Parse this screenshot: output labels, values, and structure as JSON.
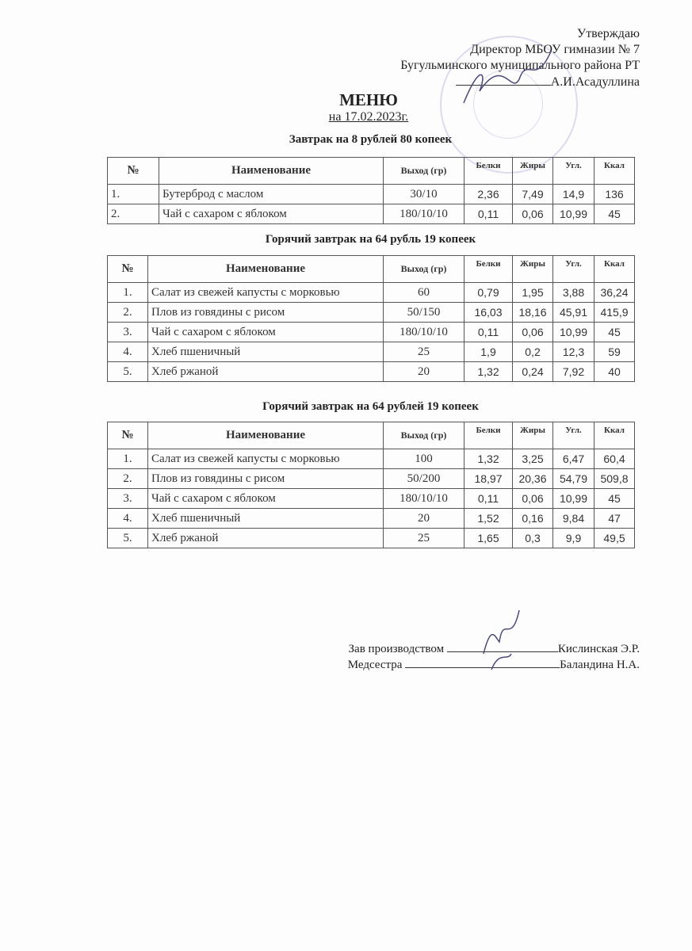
{
  "approval": {
    "line1": "Утверждаю",
    "line2": "Директор МБОУ гимназии № 7",
    "line3": "Бугульминского муниципального района РТ",
    "line4": "А.И.Асадуллина"
  },
  "header": {
    "title": "МЕНЮ",
    "date": "на 17.02.2023г."
  },
  "columns": [
    "№",
    "Наименование",
    "Выход (гр)",
    "Белки",
    "Жиры",
    "Угл.",
    "Ккал"
  ],
  "sections": [
    {
      "title": "Завтрак на 8 рублей 80 копеек",
      "rows": [
        [
          "1.",
          "Бутерброд с маслом",
          "30/10",
          "2,36",
          "7,49",
          "14,9",
          "136"
        ],
        [
          "2.",
          "Чай с сахаром с яблоком",
          "180/10/10",
          "0,11",
          "0,06",
          "10,99",
          "45"
        ]
      ]
    },
    {
      "title": "Горячий завтрак на 64 рубль 19 копеек",
      "rows": [
        [
          "1.",
          "Салат из свежей капусты с морковью",
          "60",
          "0,79",
          "1,95",
          "3,88",
          "36,24"
        ],
        [
          "2.",
          "Плов из говядины с рисом",
          "50/150",
          "16,03",
          "18,16",
          "45,91",
          "415,9"
        ],
        [
          "3.",
          "Чай с сахаром с яблоком",
          "180/10/10",
          "0,11",
          "0,06",
          "10,99",
          "45"
        ],
        [
          "4.",
          "Хлеб пшеничный",
          "25",
          "1,9",
          "0,2",
          "12,3",
          "59"
        ],
        [
          "5.",
          "Хлеб ржаной",
          "20",
          "1,32",
          "0,24",
          "7,92",
          "40"
        ]
      ]
    },
    {
      "title": "Горячий завтрак на 64 рублей 19 копеек",
      "rows": [
        [
          "1.",
          "Салат из свежей капусты с морковью",
          "100",
          "1,32",
          "3,25",
          "6,47",
          "60,4"
        ],
        [
          "2.",
          "Плов из говядины с рисом",
          "50/200",
          "18,97",
          "20,36",
          "54,79",
          "509,8"
        ],
        [
          "3.",
          "Чай с сахаром с яблоком",
          "180/10/10",
          "0,11",
          "0,06",
          "10,99",
          "45"
        ],
        [
          "4.",
          "Хлеб пшеничный",
          "20",
          "1,52",
          "0,16",
          "9,84",
          "47"
        ],
        [
          "5.",
          "Хлеб ржаной",
          "25",
          "1,65",
          "0,3",
          "9,9",
          "49,5"
        ]
      ]
    }
  ],
  "signatures": [
    {
      "role": "Зав производством",
      "name": "Кислинская Э.Р."
    },
    {
      "role": "Медсестра",
      "name": "Баландина Н.А."
    }
  ]
}
